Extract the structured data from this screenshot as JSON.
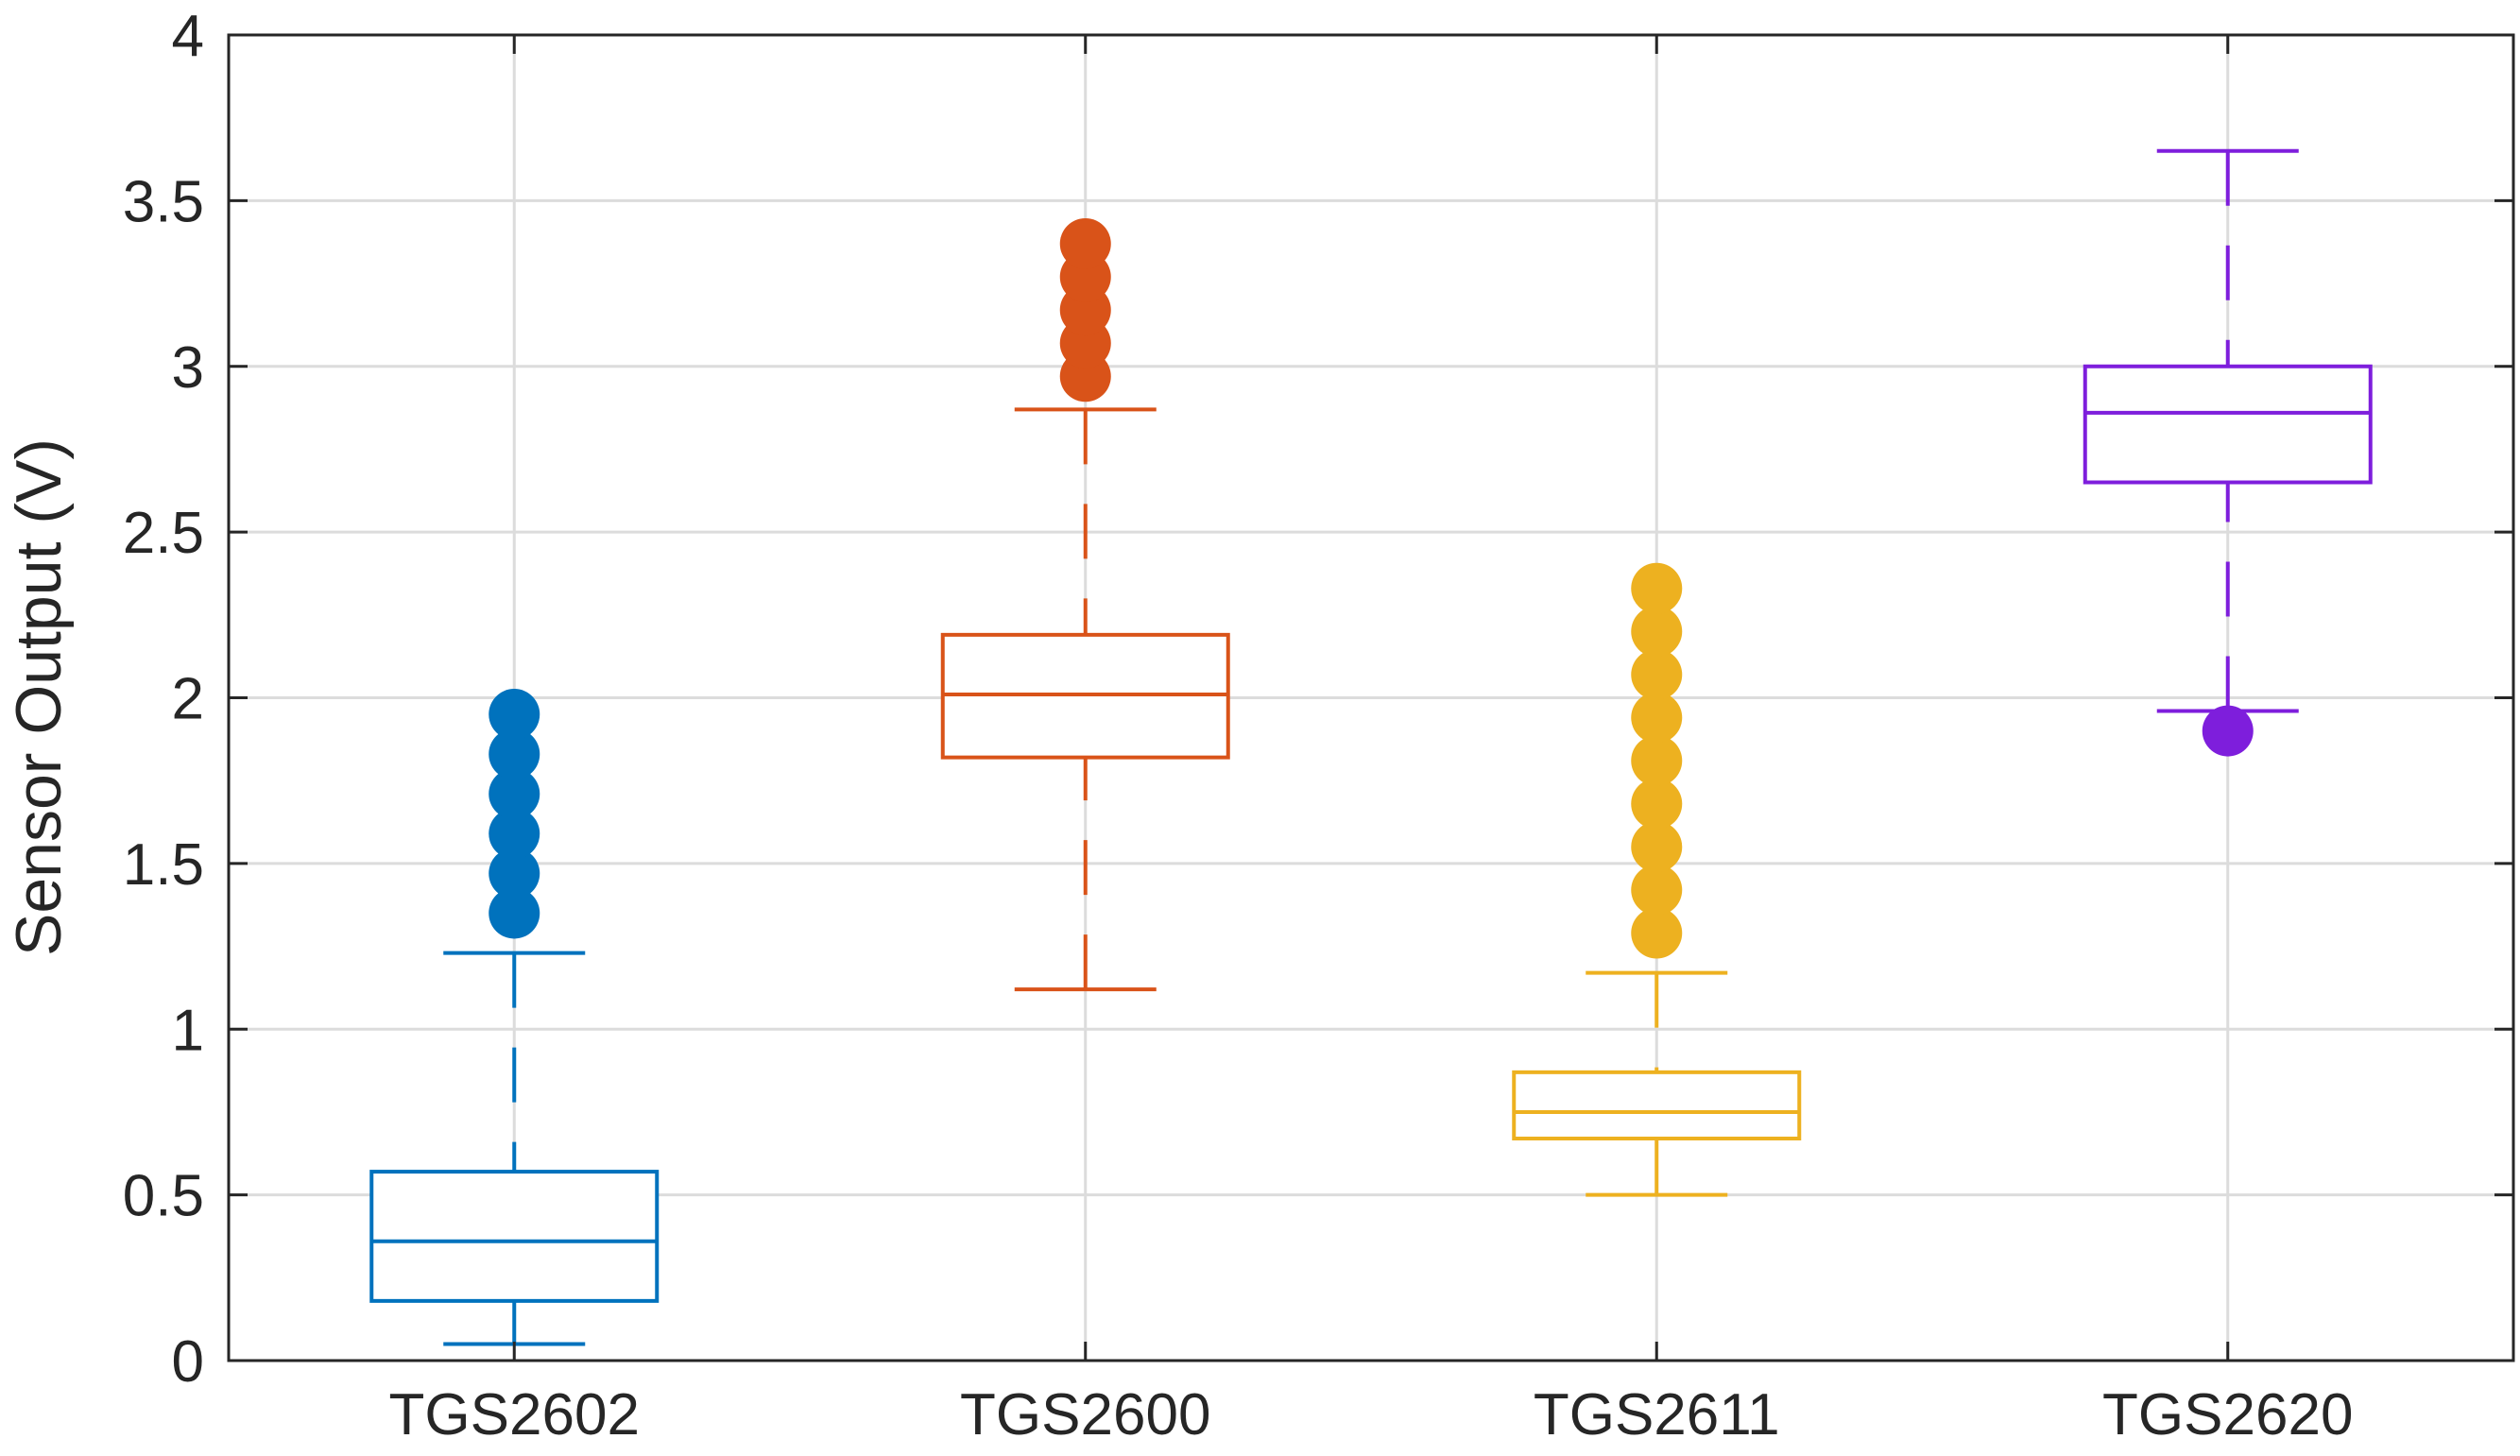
{
  "chart_data": {
    "type": "boxplot",
    "title": "",
    "xlabel": "",
    "ylabel": "Sensor Output (V)",
    "ylim": [
      0,
      4
    ],
    "yticks": [
      0,
      0.5,
      1,
      1.5,
      2,
      2.5,
      3,
      3.5,
      4
    ],
    "ytick_labels": [
      "0",
      "0.5",
      "1",
      "1.5",
      "2",
      "2.5",
      "3",
      "3.5",
      "4"
    ],
    "grid": true,
    "categories": [
      "TGS2602",
      "TGS2600",
      "TGS2611",
      "TGS2620"
    ],
    "series": [
      {
        "name": "TGS2602",
        "color": "#0072BD",
        "whisker_low": 0.05,
        "q1": 0.18,
        "median": 0.36,
        "q3": 0.57,
        "whisker_high": 1.23,
        "outliers": [
          1.35,
          1.47,
          1.59,
          1.71,
          1.83,
          1.95
        ]
      },
      {
        "name": "TGS2600",
        "color": "#D95319",
        "whisker_low": 1.12,
        "q1": 1.82,
        "median": 2.01,
        "q3": 2.19,
        "whisker_high": 2.87,
        "outliers": [
          2.97,
          3.07,
          3.17,
          3.27,
          3.37
        ]
      },
      {
        "name": "TGS2611",
        "color": "#EDB120",
        "whisker_low": 0.5,
        "q1": 0.67,
        "median": 0.75,
        "q3": 0.87,
        "whisker_high": 1.17,
        "outliers": [
          1.29,
          1.42,
          1.55,
          1.68,
          1.81,
          1.94,
          2.07,
          2.2,
          2.33
        ]
      },
      {
        "name": "TGS2620",
        "color": "#7E1EDC",
        "whisker_low": 1.96,
        "q1": 2.65,
        "median": 2.86,
        "q3": 3.0,
        "whisker_high": 3.65,
        "outliers": [
          1.9
        ]
      }
    ]
  }
}
